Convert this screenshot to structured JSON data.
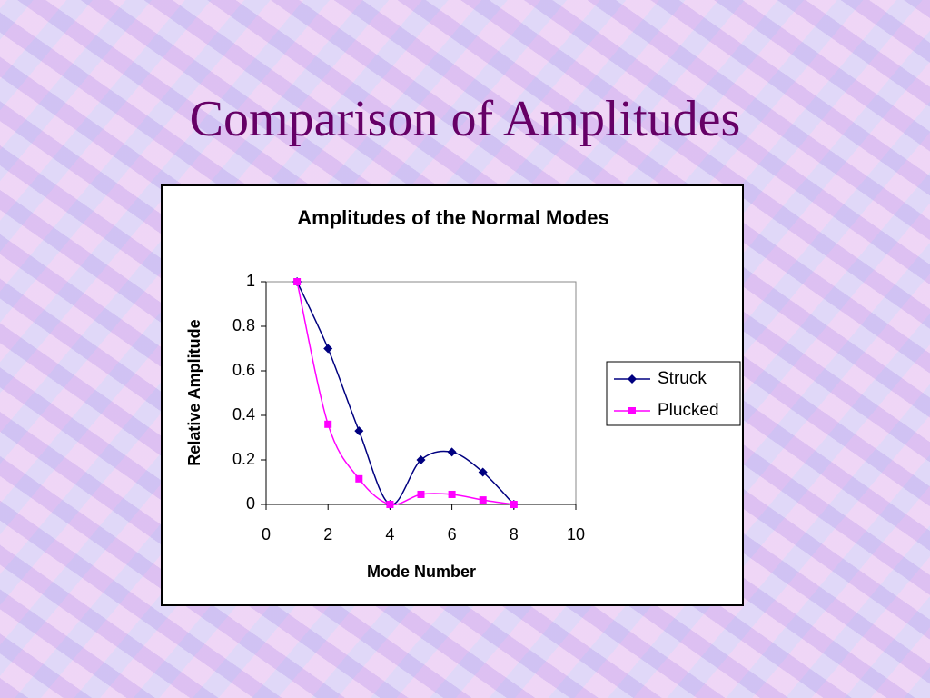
{
  "slide": {
    "title": "Comparison of Amplitudes"
  },
  "chart_data": {
    "type": "line",
    "smooth": true,
    "title": "Amplitudes of the Normal Modes",
    "x_label": "Mode Number",
    "y_label": "Relative Amplitude",
    "x": [
      1,
      2,
      3,
      4,
      5,
      6,
      7,
      8
    ],
    "series": [
      {
        "name": "Struck",
        "color": "#000080",
        "marker": "diamond",
        "values": [
          1,
          0.7,
          0.33,
          0,
          0.2,
          0.235,
          0.145,
          0
        ]
      },
      {
        "name": "Plucked",
        "color": "#ff00ff",
        "marker": "square",
        "values": [
          1,
          0.36,
          0.115,
          0,
          0.045,
          0.045,
          0.02,
          0
        ]
      }
    ],
    "xlim": [
      0,
      10
    ],
    "xticks": [
      0,
      2,
      4,
      6,
      8,
      10
    ],
    "ylim": [
      0,
      1
    ],
    "yticks": [
      0,
      0.2,
      0.4,
      0.6,
      0.8,
      1
    ],
    "legend": "right"
  }
}
